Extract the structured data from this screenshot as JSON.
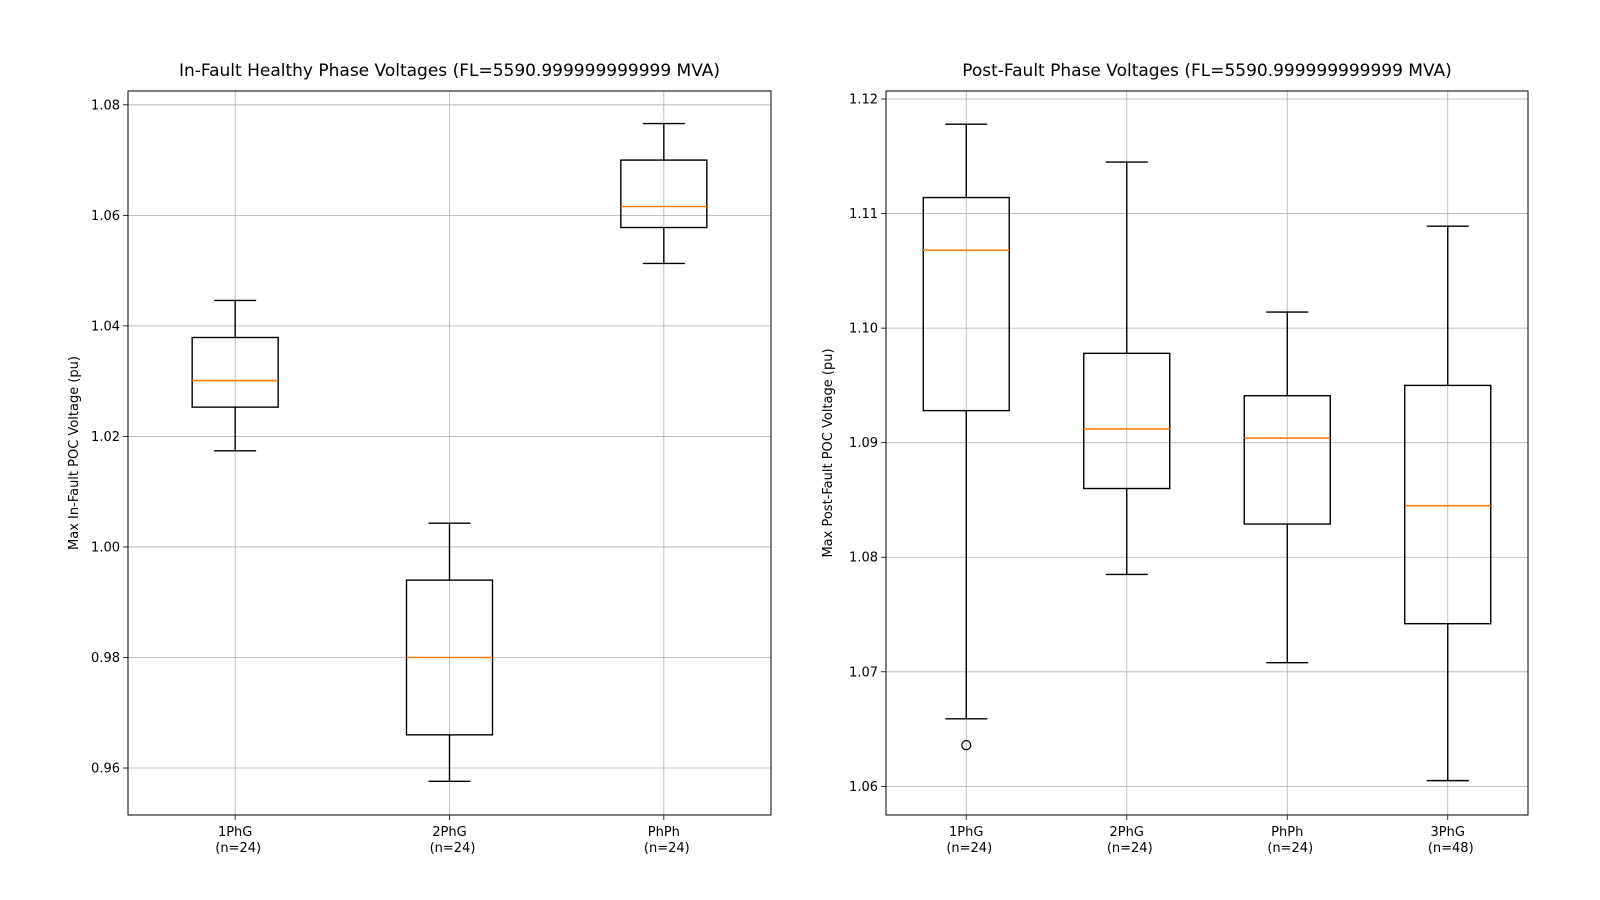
{
  "chart_data": [
    {
      "type": "box",
      "title": "In-Fault Healthy Phase Voltages (FL=5590.999999999999 MVA)",
      "ylabel": "Max In-Fault POC Voltage (pu)",
      "xlabel": "",
      "ylim": [
        0.9515,
        1.0825
      ],
      "yticks": [
        0.96,
        0.98,
        1.0,
        1.02,
        1.04,
        1.06,
        1.08
      ],
      "ytick_labels": [
        "0.96",
        "0.98",
        "1.00",
        "1.02",
        "1.04",
        "1.06",
        "1.08"
      ],
      "grid": true,
      "categories": [
        {
          "name": "1PhG",
          "count": "(n=24)",
          "whislo": 1.0174,
          "q1": 1.0253,
          "med": 1.0301,
          "q3": 1.0379,
          "whishi": 1.0446,
          "fliers": []
        },
        {
          "name": "2PhG",
          "count": "(n=24)",
          "whislo": 0.9576,
          "q1": 0.966,
          "med": 0.98,
          "q3": 0.994,
          "whishi": 1.0043,
          "fliers": []
        },
        {
          "name": "PhPh",
          "count": "(n=24)",
          "whislo": 1.0513,
          "q1": 1.0578,
          "med": 1.0616,
          "q3": 1.07,
          "whishi": 1.0766,
          "fliers": []
        }
      ]
    },
    {
      "type": "box",
      "title": "Post-Fault Phase Voltages (FL=5590.999999999999 MVA)",
      "ylabel": "Max Post-Fault POC Voltage (pu)",
      "xlabel": "",
      "ylim": [
        1.0575,
        1.1207
      ],
      "yticks": [
        1.06,
        1.07,
        1.08,
        1.09,
        1.1,
        1.11,
        1.12
      ],
      "ytick_labels": [
        "1.06",
        "1.07",
        "1.08",
        "1.09",
        "1.10",
        "1.11",
        "1.12"
      ],
      "grid": true,
      "categories": [
        {
          "name": "1PhG",
          "count": "(n=24)",
          "whislo": 1.0659,
          "q1": 1.0928,
          "med": 1.1068,
          "q3": 1.1114,
          "whishi": 1.1178,
          "fliers": [
            1.0636
          ]
        },
        {
          "name": "2PhG",
          "count": "(n=24)",
          "whislo": 1.0785,
          "q1": 1.086,
          "med": 1.0912,
          "q3": 1.0978,
          "whishi": 1.1145,
          "fliers": []
        },
        {
          "name": "PhPh",
          "count": "(n=24)",
          "whislo": 1.0708,
          "q1": 1.0829,
          "med": 1.0904,
          "q3": 1.0941,
          "whishi": 1.1014,
          "fliers": []
        },
        {
          "name": "3PhG",
          "count": "(n=48)",
          "whislo": 1.0605,
          "q1": 1.0742,
          "med": 1.0845,
          "q3": 1.095,
          "whishi": 1.1089,
          "fliers": []
        }
      ]
    }
  ]
}
